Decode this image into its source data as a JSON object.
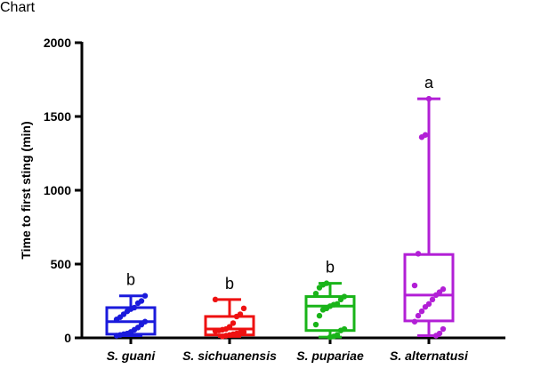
{
  "chart_data": {
    "type": "box",
    "ylabel": "Time to first sting (min)",
    "xlabel": "",
    "ylim": [
      0,
      2000
    ],
    "yticks": [
      0,
      500,
      1000,
      1500,
      2000
    ],
    "ytick_labels": [
      "0",
      "500",
      "1000",
      "1500",
      "2000"
    ],
    "legend": "none",
    "grid": false,
    "categories": [
      "S. guani",
      "S. sichuanensis",
      "S. pupariae",
      "S. alternatusi"
    ],
    "groups": [
      {
        "name": "S. guani",
        "color": "#1a1adc",
        "min": 15,
        "q1": 25,
        "median": 110,
        "q3": 205,
        "max": 285,
        "letter": "b",
        "points": [
          15,
          20,
          25,
          30,
          40,
          55,
          70,
          90,
          110,
          125,
          140,
          160,
          180,
          195,
          205,
          235,
          250,
          285
        ]
      },
      {
        "name": "S. sichuanensis",
        "color": "#ee1111",
        "min": 10,
        "q1": 20,
        "median": 60,
        "q3": 145,
        "max": 260,
        "letter": "b",
        "points": [
          10,
          15,
          20,
          25,
          30,
          35,
          40,
          45,
          50,
          55,
          60,
          75,
          100,
          145,
          160,
          200,
          260
        ]
      },
      {
        "name": "S. pupariae",
        "color": "#19b419",
        "min": 5,
        "q1": 50,
        "median": 215,
        "q3": 280,
        "max": 370,
        "letter": "b",
        "points": [
          5,
          10,
          20,
          50,
          60,
          90,
          150,
          190,
          200,
          215,
          225,
          230,
          260,
          280,
          300,
          340,
          360,
          370
        ]
      },
      {
        "name": "S. alternatusi",
        "color": "#b21fd6",
        "min": 15,
        "q1": 115,
        "median": 290,
        "q3": 565,
        "max": 1620,
        "letter": "a",
        "points": [
          15,
          30,
          60,
          110,
          150,
          180,
          210,
          230,
          260,
          290,
          310,
          330,
          355,
          570,
          1360,
          1375,
          1620
        ]
      }
    ]
  }
}
